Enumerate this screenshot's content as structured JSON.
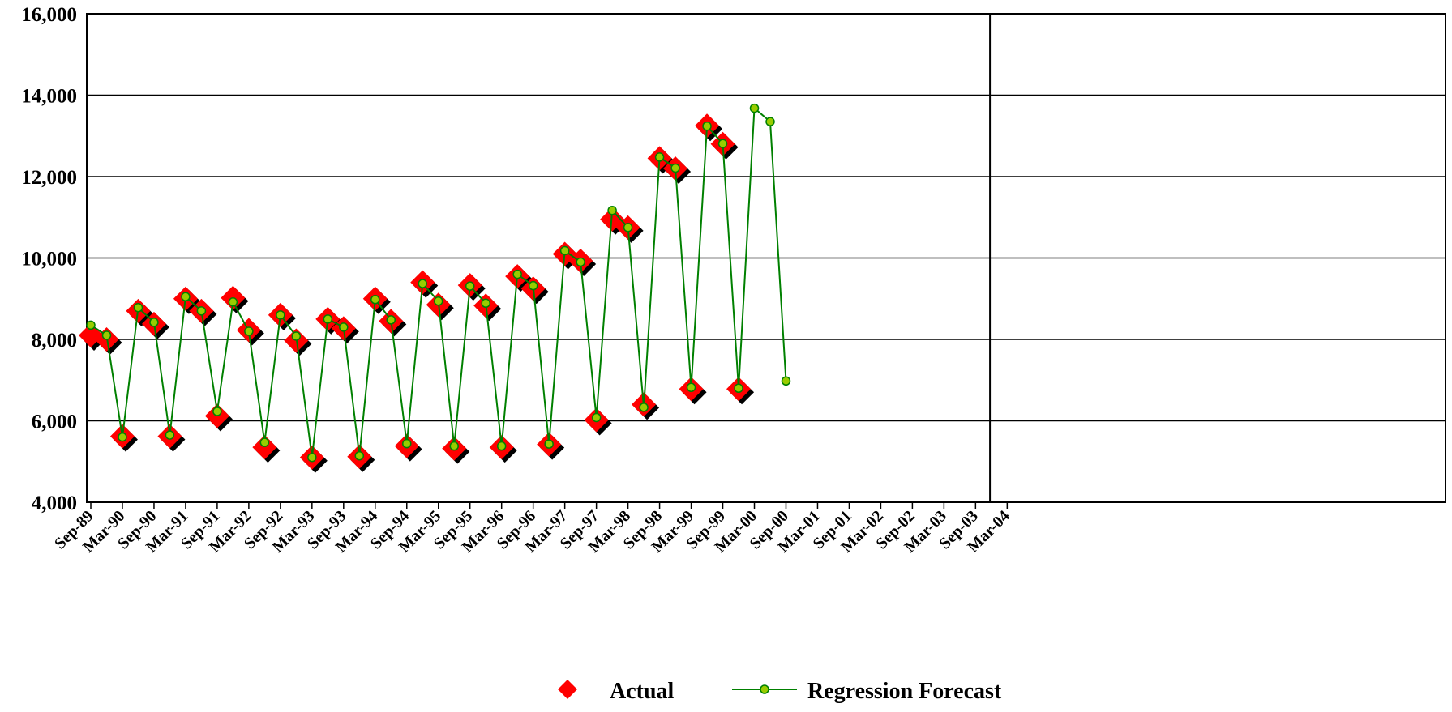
{
  "chart_data": {
    "type": "line",
    "title": "",
    "xlabel": "",
    "ylabel": "",
    "ylim": [
      4000,
      16000
    ],
    "yticks": [
      "4,000",
      "6,000",
      "8,000",
      "10,000",
      "12,000",
      "14,000",
      "16,000"
    ],
    "x_tick_labels": [
      "Sep-89",
      "Mar-90",
      "Sep-90",
      "Mar-91",
      "Sep-91",
      "Mar-92",
      "Sep-92",
      "Mar-93",
      "Sep-93",
      "Mar-94",
      "Sep-94",
      "Mar-95",
      "Sep-95",
      "Mar-96",
      "Sep-96",
      "Mar-97",
      "Sep-97",
      "Mar-98",
      "Sep-98",
      "Mar-99",
      "Sep-99",
      "Mar-00",
      "Sep-00",
      "Mar-01",
      "Sep-01",
      "Mar-02",
      "Sep-02",
      "Mar-03",
      "Sep-03",
      "Mar-04"
    ],
    "grid": "horizontal",
    "legend_position": "bottom",
    "forecast_divider_after_index": 56,
    "series": [
      {
        "name": "Actual",
        "marker": "diamond",
        "color": "#ff0000",
        "shadow_color": "#000000",
        "values": [
          8100,
          8000,
          5620,
          8700,
          8380,
          5620,
          9000,
          8700,
          6120,
          9020,
          8230,
          5350,
          8600,
          7970,
          5100,
          8500,
          8270,
          5120,
          9000,
          8450,
          5380,
          9400,
          8850,
          5320,
          9330,
          8830,
          5350,
          9550,
          9250,
          5420,
          10100,
          9930,
          6020,
          10950,
          10750,
          6400,
          12450,
          12200,
          6780,
          13250,
          12800,
          6780
        ]
      },
      {
        "name": "Regression Forecast",
        "marker": "circle",
        "color": "#008000",
        "marker_fill": "#99cc00",
        "values": [
          8350,
          8100,
          5600,
          8780,
          8420,
          5650,
          9050,
          8700,
          6230,
          8920,
          8200,
          5470,
          8600,
          8080,
          5100,
          8500,
          8300,
          5140,
          8980,
          8480,
          5440,
          9370,
          8940,
          5380,
          9310,
          8890,
          5380,
          9600,
          9320,
          5430,
          10180,
          9900,
          6080,
          11170,
          10750,
          6330,
          12480,
          12210,
          6820,
          13240,
          12810,
          6800,
          13680,
          13350,
          6980
        ]
      }
    ]
  }
}
